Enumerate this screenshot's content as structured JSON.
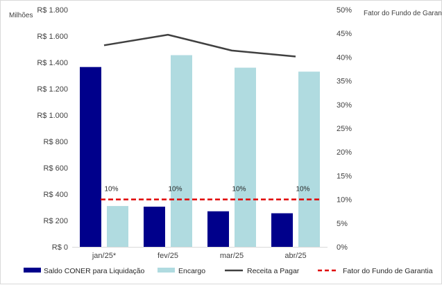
{
  "chart_data": {
    "type": "bar",
    "categories": [
      "jan/25*",
      "fev/25",
      "mar/25",
      "abr/25"
    ],
    "y_left": {
      "label": "Milhões",
      "ylim": [
        0,
        1800
      ],
      "tick_values": [
        0,
        200,
        400,
        600,
        800,
        1000,
        1200,
        1400,
        1600,
        1800
      ],
      "tick_labels": [
        "R$ 0",
        "R$ 200",
        "R$ 400",
        "R$ 600",
        "R$ 800",
        "R$ 1.000",
        "R$ 1.200",
        "R$ 1.400",
        "R$ 1.600",
        "R$ 1.800"
      ]
    },
    "y_right": {
      "label": "Fator do Fundo de Garantia",
      "ylim": [
        0,
        0.5
      ],
      "tick_values": [
        0,
        0.05,
        0.1,
        0.15,
        0.2,
        0.25,
        0.3,
        0.35,
        0.4,
        0.45,
        0.5
      ],
      "tick_labels": [
        "0%",
        "5%",
        "10%",
        "15%",
        "20%",
        "25%",
        "30%",
        "35%",
        "40%",
        "45%",
        "50%"
      ]
    },
    "series": [
      {
        "name": "Saldo CONER para Liquidação",
        "kind": "bar",
        "axis": "left",
        "color": "#00008b",
        "values": [
          1365,
          305,
          270,
          255
        ]
      },
      {
        "name": "Encargo",
        "kind": "bar",
        "axis": "left",
        "color": "#b0dbe0",
        "values": [
          310,
          1455,
          1360,
          1330
        ]
      },
      {
        "name": "Receita a Pagar",
        "kind": "line",
        "axis": "left",
        "color": "#404040",
        "values": [
          1530,
          1610,
          1490,
          1445
        ]
      },
      {
        "name": "Fator do Fundo de Garantia",
        "kind": "line-dashed",
        "axis": "right",
        "color": "#e00000",
        "values": [
          0.1,
          0.1,
          0.1,
          0.1
        ],
        "data_labels": [
          "10%",
          "10%",
          "10%",
          "10%"
        ]
      }
    ],
    "grid": false,
    "legend": "bottom"
  }
}
